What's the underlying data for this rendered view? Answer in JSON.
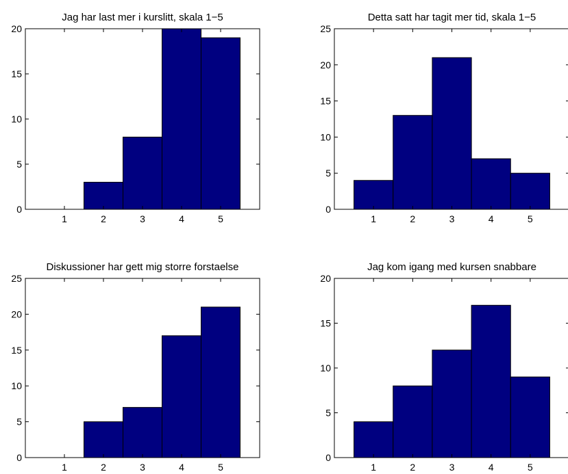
{
  "chart_data": [
    {
      "type": "bar",
      "title": "Jag har last mer i kurslitt, skala 1−5",
      "xlabel": "",
      "ylabel": "",
      "categories": [
        "1",
        "2",
        "3",
        "4",
        "5"
      ],
      "values": [
        0,
        3,
        8,
        20,
        19
      ],
      "xlim": [
        0,
        6
      ],
      "ylim": [
        0,
        20
      ],
      "yticks": [
        "0",
        "5",
        "10",
        "15",
        "20"
      ],
      "bar_color": "#000080",
      "grid": false,
      "legend": "none"
    },
    {
      "type": "bar",
      "title": "Detta satt har tagit mer tid, skala 1−5",
      "xlabel": "",
      "ylabel": "",
      "categories": [
        "1",
        "2",
        "3",
        "4",
        "5"
      ],
      "values": [
        4,
        13,
        21,
        7,
        5
      ],
      "xlim": [
        0,
        6
      ],
      "ylim": [
        0,
        25
      ],
      "yticks": [
        "0",
        "5",
        "10",
        "15",
        "20",
        "25"
      ],
      "bar_color": "#000080",
      "grid": false,
      "legend": "none"
    },
    {
      "type": "bar",
      "title": "Diskussioner har gett mig storre forstaelse",
      "xlabel": "",
      "ylabel": "",
      "categories": [
        "1",
        "2",
        "3",
        "4",
        "5"
      ],
      "values": [
        0,
        5,
        7,
        17,
        21
      ],
      "xlim": [
        0,
        6
      ],
      "ylim": [
        0,
        25
      ],
      "yticks": [
        "0",
        "5",
        "10",
        "15",
        "20",
        "25"
      ],
      "bar_color": "#000080",
      "grid": false,
      "legend": "none"
    },
    {
      "type": "bar",
      "title": "Jag kom igang med kursen snabbare",
      "xlabel": "",
      "ylabel": "",
      "categories": [
        "1",
        "2",
        "3",
        "4",
        "5"
      ],
      "values": [
        4,
        8,
        12,
        17,
        9
      ],
      "xlim": [
        0,
        6
      ],
      "ylim": [
        0,
        20
      ],
      "yticks": [
        "0",
        "5",
        "10",
        "15",
        "20"
      ],
      "bar_color": "#000080",
      "grid": false,
      "legend": "none"
    }
  ]
}
